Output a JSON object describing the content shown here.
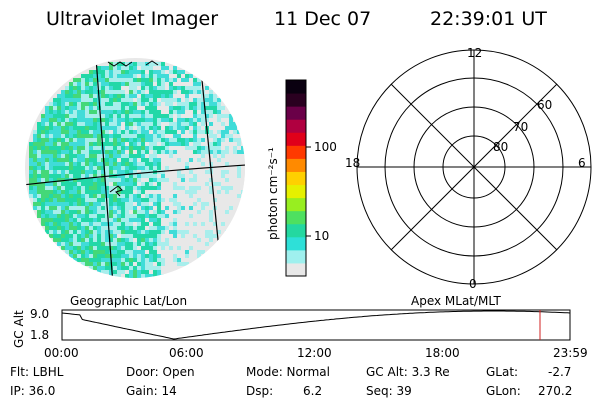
{
  "header": {
    "instrument": "Ultraviolet Imager",
    "date": "11 Dec 07",
    "time": "22:39:01 UT"
  },
  "colorbar": {
    "unit_label": "photon cm⁻²s⁻¹",
    "ticks": [
      "100",
      "10"
    ],
    "colors": [
      "#e8e8e8",
      "#9ff0ee",
      "#2ee0d8",
      "#24d8a0",
      "#4ee060",
      "#98ee20",
      "#e6f000",
      "#ffd000",
      "#ff8a00",
      "#ff3a00",
      "#e0001a",
      "#b00040",
      "#6a0048",
      "#2a0020",
      "#0a0010"
    ]
  },
  "image_panel": {
    "caption": "Geographic Lat/Lon",
    "palette": [
      "#e8e8e8",
      "#a8eeec",
      "#40dcd8",
      "#22d8a8",
      "#44d878"
    ]
  },
  "polar_panel": {
    "caption": "Apex MLat/MLT",
    "mlt_labels": [
      "12",
      "18",
      "6",
      "0"
    ],
    "mlat_labels": [
      "60",
      "70",
      "80"
    ]
  },
  "timeline": {
    "ylabel": "GC Alt",
    "y_ticks": [
      "9.0",
      "1.8"
    ],
    "x_ticks": [
      "00:00",
      "06:00",
      "12:00",
      "18:00",
      "23:59"
    ],
    "marker_color": "#d02020"
  },
  "info": {
    "filter": "Flt: LBHL",
    "ip": "IP: 36.0",
    "door": "Door: Open",
    "gain": "Gain: 14",
    "mode": "Mode: Normal",
    "dsp": "Dsp:",
    "dsp_value": "6.2",
    "gc_alt": "GC Alt: 3.3 Re",
    "seq": "Seq: 39",
    "glat_label": "GLat:",
    "glat_value": "-2.7",
    "glon_label": "GLon:",
    "glon_value": "270.2"
  }
}
